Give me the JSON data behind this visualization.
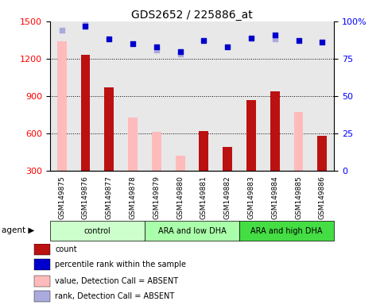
{
  "title": "GDS2652 / 225886_at",
  "samples": [
    "GSM149875",
    "GSM149876",
    "GSM149877",
    "GSM149878",
    "GSM149879",
    "GSM149880",
    "GSM149881",
    "GSM149882",
    "GSM149883",
    "GSM149884",
    "GSM149885",
    "GSM149886"
  ],
  "groups": [
    {
      "label": "control",
      "start": 0,
      "end": 3,
      "color": "#ccffcc"
    },
    {
      "label": "ARA and low DHA",
      "start": 4,
      "end": 7,
      "color": "#aaffaa"
    },
    {
      "label": "ARA and high DHA",
      "start": 8,
      "end": 11,
      "color": "#44dd44"
    }
  ],
  "count": [
    null,
    1230,
    970,
    null,
    null,
    null,
    620,
    490,
    870,
    940,
    null,
    580
  ],
  "value_absent": [
    1340,
    null,
    null,
    730,
    610,
    420,
    null,
    null,
    null,
    null,
    770,
    null
  ],
  "percentile_rank": [
    null,
    97,
    88,
    85,
    83,
    80,
    87,
    83,
    89,
    91,
    87,
    86
  ],
  "rank_absent": [
    94,
    98,
    null,
    null,
    81,
    78,
    null,
    null,
    null,
    88,
    null,
    null
  ],
  "ylim_left": [
    300,
    1500
  ],
  "ylim_right": [
    0,
    100
  ],
  "yticks_left": [
    300,
    600,
    900,
    1200,
    1500
  ],
  "yticks_right": [
    0,
    25,
    50,
    75,
    100
  ],
  "bar_color_count": "#bb1111",
  "bar_color_absent": "#ffbbbb",
  "dot_color_rank": "#0000cc",
  "dot_color_rank_absent": "#aaaadd",
  "bg_color": "#e8e8e8",
  "legend_items": [
    {
      "label": "count",
      "color": "#bb1111"
    },
    {
      "label": "percentile rank within the sample",
      "color": "#0000cc"
    },
    {
      "label": "value, Detection Call = ABSENT",
      "color": "#ffbbbb"
    },
    {
      "label": "rank, Detection Call = ABSENT",
      "color": "#aaaadd"
    }
  ]
}
